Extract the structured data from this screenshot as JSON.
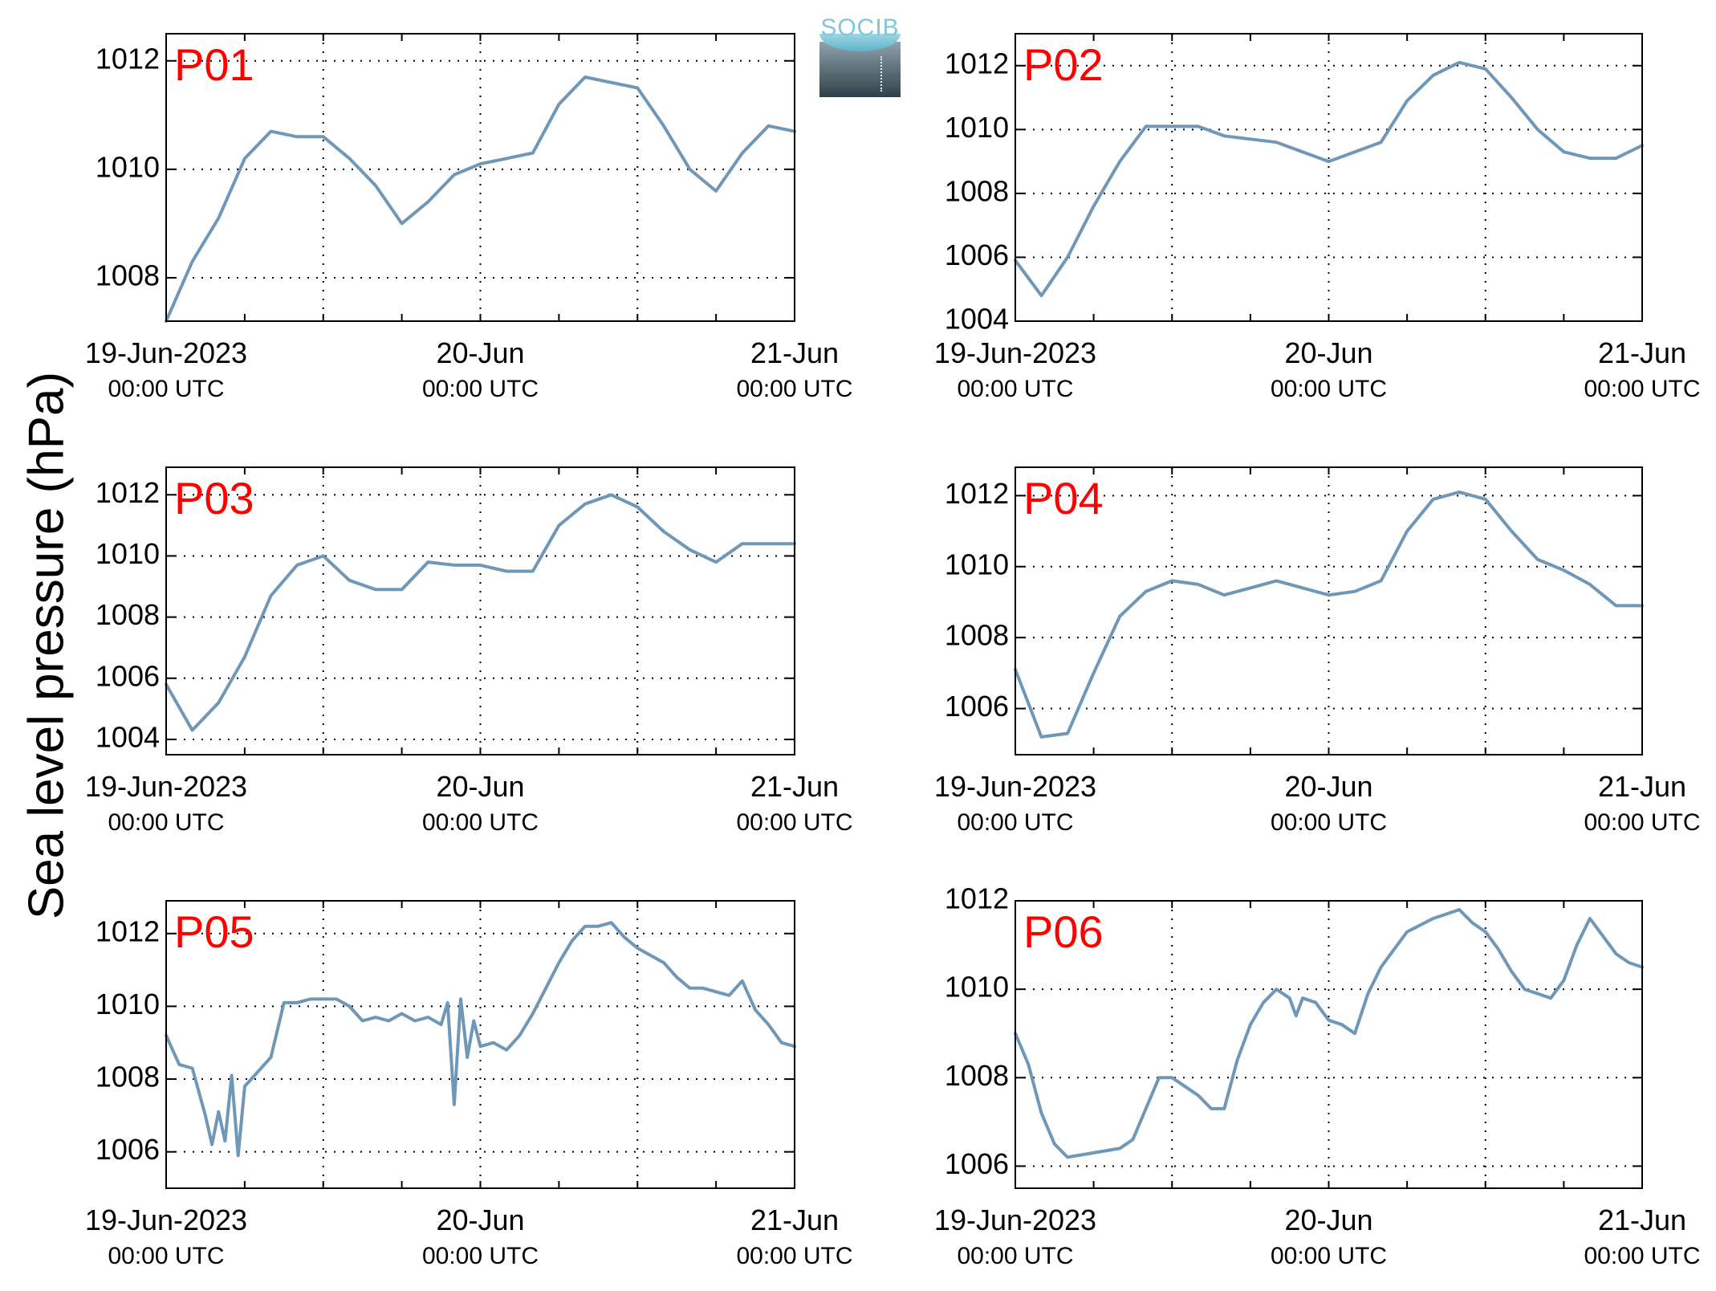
{
  "figure": {
    "ylabel": "Sea level pressure (hPa)",
    "logo_text": "SOCIB",
    "colors": {
      "line": "#6f97b8",
      "label": "#ff0000",
      "axis": "#000000",
      "grid": "#000000"
    }
  },
  "chart_data": [
    {
      "type": "line",
      "label": "P01",
      "title": "",
      "xlabel": "",
      "x_ticks": [
        [
          "19-Jun-2023",
          "00:00 UTC"
        ],
        [
          "20-Jun",
          "00:00 UTC"
        ],
        [
          "21-Jun",
          "00:00 UTC"
        ]
      ],
      "ylim": [
        1007.2,
        1012.5
      ],
      "yticks": [
        1008,
        1010,
        1012
      ],
      "grid": true,
      "x_hours": [
        0,
        2,
        4,
        6,
        8,
        10,
        12,
        14,
        16,
        18,
        20,
        22,
        24,
        26,
        28,
        30,
        32,
        34,
        36,
        38,
        40,
        42,
        44,
        46,
        48
      ],
      "values": [
        1007.2,
        1008.3,
        1009.1,
        1010.2,
        1010.7,
        1010.6,
        1010.6,
        1010.2,
        1009.7,
        1009.0,
        1009.4,
        1009.9,
        1010.1,
        1010.2,
        1010.3,
        1011.2,
        1011.7,
        1011.6,
        1011.5,
        1010.8,
        1010.0,
        1009.6,
        1010.3,
        1010.8,
        1010.7
      ]
    },
    {
      "type": "line",
      "label": "P02",
      "title": "",
      "xlabel": "",
      "x_ticks": [
        [
          "19-Jun-2023",
          "00:00 UTC"
        ],
        [
          "20-Jun",
          "00:00 UTC"
        ],
        [
          "21-Jun",
          "00:00 UTC"
        ]
      ],
      "ylim": [
        1004,
        1013
      ],
      "yticks": [
        1004,
        1006,
        1008,
        1010,
        1012
      ],
      "grid": true,
      "x_hours": [
        0,
        2,
        4,
        6,
        8,
        10,
        12,
        14,
        16,
        18,
        20,
        22,
        24,
        26,
        28,
        30,
        32,
        34,
        36,
        38,
        40,
        42,
        44,
        46,
        48
      ],
      "values": [
        1005.9,
        1004.8,
        1006.0,
        1007.6,
        1009.0,
        1010.1,
        1010.1,
        1010.1,
        1009.8,
        1009.7,
        1009.6,
        1009.3,
        1009.0,
        1009.3,
        1009.6,
        1010.9,
        1011.7,
        1012.1,
        1011.9,
        1011.0,
        1010.0,
        1009.3,
        1009.1,
        1009.1,
        1009.5
      ]
    },
    {
      "type": "line",
      "label": "P03",
      "title": "",
      "xlabel": "",
      "x_ticks": [
        [
          "19-Jun-2023",
          "00:00 UTC"
        ],
        [
          "20-Jun",
          "00:00 UTC"
        ],
        [
          "21-Jun",
          "00:00 UTC"
        ]
      ],
      "ylim": [
        1003.5,
        1012.9
      ],
      "yticks": [
        1004,
        1006,
        1008,
        1010,
        1012
      ],
      "grid": true,
      "x_hours": [
        0,
        2,
        4,
        6,
        8,
        10,
        12,
        14,
        16,
        18,
        20,
        22,
        24,
        26,
        28,
        30,
        32,
        34,
        36,
        38,
        40,
        42,
        44,
        46,
        48
      ],
      "values": [
        1005.8,
        1004.3,
        1005.2,
        1006.7,
        1008.7,
        1009.7,
        1010.0,
        1009.2,
        1008.9,
        1008.9,
        1009.8,
        1009.7,
        1009.7,
        1009.5,
        1009.5,
        1011.0,
        1011.7,
        1012.0,
        1011.6,
        1010.8,
        1010.2,
        1009.8,
        1010.4,
        1010.4,
        1010.4
      ]
    },
    {
      "type": "line",
      "label": "P04",
      "title": "",
      "xlabel": "",
      "x_ticks": [
        [
          "19-Jun-2023",
          "00:00 UTC"
        ],
        [
          "20-Jun",
          "00:00 UTC"
        ],
        [
          "21-Jun",
          "00:00 UTC"
        ]
      ],
      "ylim": [
        1004.7,
        1012.8
      ],
      "yticks": [
        1006,
        1008,
        1010,
        1012
      ],
      "grid": true,
      "x_hours": [
        0,
        2,
        4,
        6,
        8,
        10,
        12,
        14,
        16,
        18,
        20,
        22,
        24,
        26,
        28,
        30,
        32,
        34,
        36,
        38,
        40,
        42,
        44,
        46,
        48
      ],
      "values": [
        1007.1,
        1005.2,
        1005.3,
        1007.0,
        1008.6,
        1009.3,
        1009.6,
        1009.5,
        1009.2,
        1009.4,
        1009.6,
        1009.4,
        1009.2,
        1009.3,
        1009.6,
        1011.0,
        1011.9,
        1012.1,
        1011.9,
        1011.0,
        1010.2,
        1009.9,
        1009.5,
        1008.9,
        1008.9
      ]
    },
    {
      "type": "line",
      "label": "P05",
      "title": "",
      "xlabel": "",
      "x_ticks": [
        [
          "19-Jun-2023",
          "00:00 UTC"
        ],
        [
          "20-Jun",
          "00:00 UTC"
        ],
        [
          "21-Jun",
          "00:00 UTC"
        ]
      ],
      "ylim": [
        1005.0,
        1012.9
      ],
      "yticks": [
        1006,
        1008,
        1010,
        1012
      ],
      "grid": true,
      "x_hours": [
        0,
        1,
        2,
        3,
        3.5,
        4,
        4.5,
        5,
        5.5,
        6,
        7,
        8,
        9,
        10,
        11,
        12,
        13,
        14,
        15,
        16,
        17,
        18,
        19,
        20,
        21,
        21.5,
        22,
        22.5,
        23,
        23.5,
        24,
        25,
        26,
        27,
        28,
        29,
        30,
        31,
        32,
        33,
        34,
        35,
        36,
        37,
        38,
        39,
        40,
        41,
        42,
        43,
        44,
        45,
        46,
        47,
        48
      ],
      "values": [
        1009.2,
        1008.4,
        1008.3,
        1007.0,
        1006.2,
        1007.1,
        1006.3,
        1008.1,
        1005.9,
        1007.8,
        1008.2,
        1008.6,
        1010.1,
        1010.1,
        1010.2,
        1010.2,
        1010.2,
        1010.0,
        1009.6,
        1009.7,
        1009.6,
        1009.8,
        1009.6,
        1009.7,
        1009.5,
        1010.1,
        1007.3,
        1010.2,
        1008.6,
        1009.6,
        1008.9,
        1009.0,
        1008.8,
        1009.2,
        1009.8,
        1010.5,
        1011.2,
        1011.8,
        1012.2,
        1012.2,
        1012.3,
        1011.9,
        1011.6,
        1011.4,
        1011.2,
        1010.8,
        1010.5,
        1010.5,
        1010.4,
        1010.3,
        1010.7,
        1009.9,
        1009.5,
        1009.0,
        1008.9
      ]
    },
    {
      "type": "line",
      "label": "P06",
      "title": "",
      "xlabel": "",
      "x_ticks": [
        [
          "19-Jun-2023",
          "00:00 UTC"
        ],
        [
          "20-Jun",
          "00:00 UTC"
        ],
        [
          "21-Jun",
          "00:00 UTC"
        ]
      ],
      "ylim": [
        1005.5,
        1012.0
      ],
      "yticks": [
        1006,
        1008,
        1010,
        1012
      ],
      "grid": true,
      "x_hours": [
        0,
        1,
        2,
        3,
        4,
        6,
        8,
        9,
        10,
        11,
        12,
        13,
        14,
        15,
        16,
        17,
        18,
        19,
        20,
        21,
        21.5,
        22,
        23,
        24,
        25,
        26,
        27,
        28,
        30,
        32,
        34,
        35,
        36,
        37,
        38,
        39,
        40,
        41,
        42,
        43,
        44,
        45,
        46,
        47,
        48
      ],
      "values": [
        1009.0,
        1008.3,
        1007.2,
        1006.5,
        1006.2,
        1006.3,
        1006.4,
        1006.6,
        1007.3,
        1008.0,
        1008.0,
        1007.8,
        1007.6,
        1007.3,
        1007.3,
        1008.4,
        1009.2,
        1009.7,
        1010.0,
        1009.8,
        1009.4,
        1009.8,
        1009.7,
        1009.3,
        1009.2,
        1009.0,
        1009.9,
        1010.5,
        1011.3,
        1011.6,
        1011.8,
        1011.5,
        1011.3,
        1010.9,
        1010.4,
        1010.0,
        1009.9,
        1009.8,
        1010.2,
        1011.0,
        1011.6,
        1011.2,
        1010.8,
        1010.6,
        1010.5
      ]
    }
  ]
}
